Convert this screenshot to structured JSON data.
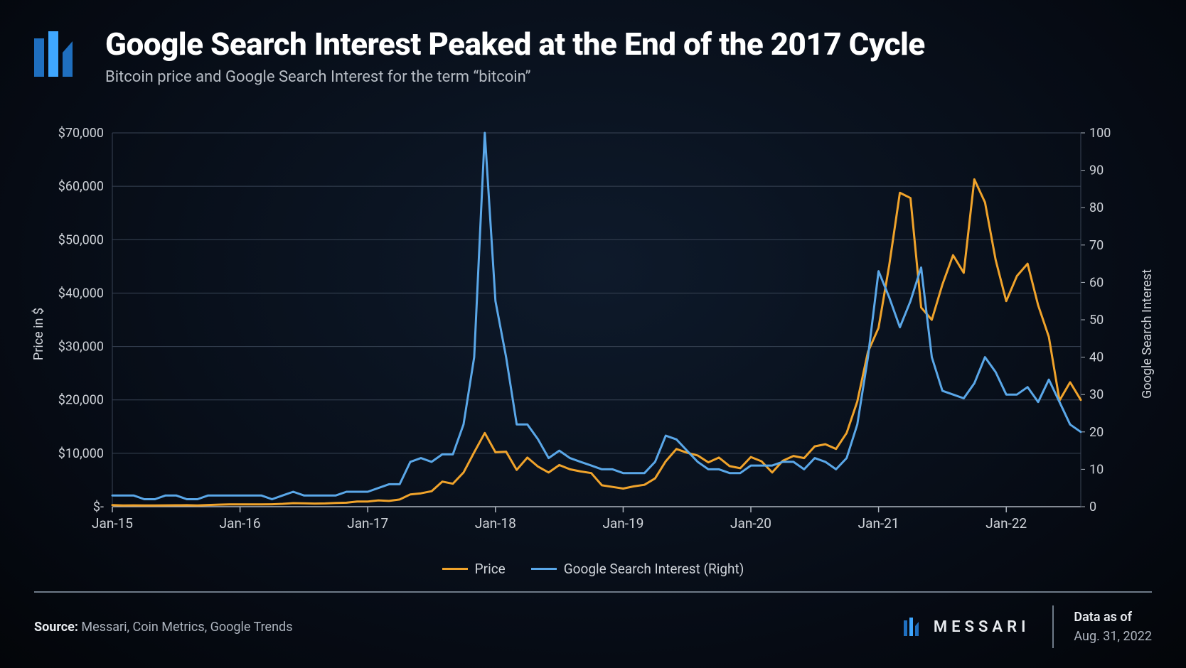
{
  "header": {
    "title": "Google Search Interest Peaked at the End of the 2017 Cycle",
    "subtitle": "Bitcoin price and Google Search Interest for the term “bitcoin”"
  },
  "footer": {
    "source_label": "Source:",
    "source_value": "Messari, Coin Metrics, Google Trends",
    "brand": "MESSARI",
    "date_label": "Data as of",
    "date_value": "Aug. 31, 2022"
  },
  "brand_colors": {
    "logo_blue_light": "#3fa7ff",
    "logo_blue_dark": "#1f6fbf"
  },
  "chart": {
    "type": "line-dual-axis",
    "background": "transparent",
    "grid_color": "#394455",
    "axis_color": "#aeb5bf",
    "text_color": "#cfd3d9",
    "title_fontsize": 44,
    "subtitle_fontsize": 22,
    "tick_fontsize": 18,
    "line_width": 3,
    "x": {
      "label": "",
      "min_index": 0,
      "max_index": 91,
      "tick_indices": [
        0,
        12,
        24,
        36,
        48,
        60,
        72,
        84
      ],
      "tick_labels": [
        "Jan-15",
        "Jan-16",
        "Jan-17",
        "Jan-18",
        "Jan-19",
        "Jan-20",
        "Jan-21",
        "Jan-22"
      ]
    },
    "y_left": {
      "label": "Price in $",
      "min": 0,
      "max": 70000,
      "step": 10000,
      "tick_labels": [
        "$-",
        "$10,000",
        "$20,000",
        "$30,000",
        "$40,000",
        "$50,000",
        "$60,000",
        "$70,000"
      ]
    },
    "y_right": {
      "label": "Google Search Interest",
      "min": 0,
      "max": 100,
      "step": 10,
      "tick_labels": [
        "0",
        "10",
        "20",
        "30",
        "40",
        "50",
        "60",
        "70",
        "80",
        "90",
        "100"
      ]
    },
    "series": [
      {
        "name": "Price",
        "axis": "left",
        "color": "#f0a32b",
        "legend_label": "Price",
        "values": [
          310,
          240,
          250,
          240,
          230,
          250,
          270,
          280,
          240,
          320,
          380,
          430,
          430,
          440,
          420,
          450,
          530,
          670,
          620,
          580,
          610,
          700,
          740,
          960,
          970,
          1190,
          1080,
          1350,
          2300,
          2500,
          2900,
          4700,
          4300,
          6400,
          10200,
          13800,
          10200,
          10300,
          6900,
          9200,
          7500,
          6400,
          7800,
          7000,
          6600,
          6300,
          4000,
          3700,
          3400,
          3800,
          4100,
          5300,
          8500,
          10800,
          10100,
          9600,
          8300,
          9200,
          7600,
          7200,
          9300,
          8500,
          6400,
          8600,
          9500,
          9100,
          11300,
          11700,
          10800,
          13800,
          19700,
          29000,
          33500,
          45200,
          58800,
          57800,
          37300,
          35000,
          41600,
          47100,
          43800,
          61300,
          57000,
          46200,
          38500,
          43200,
          45500,
          37700,
          31800,
          19900,
          23300,
          20000
        ]
      },
      {
        "name": "Google Search Interest (Right)",
        "axis": "right",
        "color": "#5aa7e8",
        "legend_label": "Google Search Interest (Right)",
        "values": [
          3,
          3,
          3,
          2,
          2,
          3,
          3,
          2,
          2,
          3,
          3,
          3,
          3,
          3,
          3,
          2,
          3,
          4,
          3,
          3,
          3,
          3,
          4,
          4,
          4,
          5,
          6,
          6,
          12,
          13,
          12,
          14,
          14,
          22,
          40,
          100,
          55,
          40,
          22,
          22,
          18,
          13,
          15,
          13,
          12,
          11,
          10,
          10,
          9,
          9,
          9,
          12,
          19,
          18,
          15,
          12,
          10,
          10,
          9,
          9,
          11,
          11,
          11,
          12,
          12,
          10,
          13,
          12,
          10,
          13,
          22,
          40,
          63,
          56,
          48,
          55,
          64,
          40,
          31,
          30,
          29,
          33,
          40,
          36,
          30,
          30,
          32,
          28,
          34,
          28,
          22,
          20
        ]
      }
    ]
  }
}
